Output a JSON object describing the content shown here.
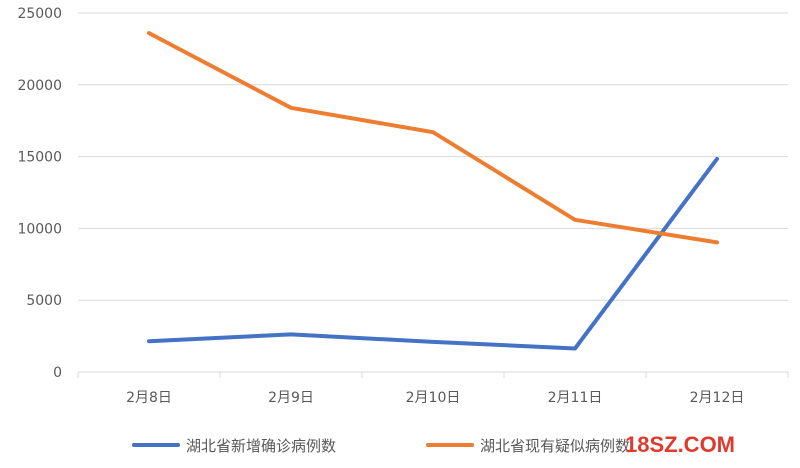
{
  "chart_data": {
    "type": "line",
    "categories": [
      "2月8日",
      "2月9日",
      "2月10日",
      "2月11日",
      "2月12日"
    ],
    "ylim": [
      0,
      25000
    ],
    "yticks": [
      "0",
      "5000",
      "10000",
      "15000",
      "20000",
      "25000"
    ],
    "grid": true,
    "legend_position": "bottom",
    "series": [
      {
        "name": "湖北省新增确诊病例数",
        "color": "#4472C4",
        "values": [
          2147,
          2618,
          2097,
          1638,
          14840
        ]
      },
      {
        "name": "湖北省现有疑似病例数",
        "color": "#ED7D31",
        "values": [
          23600,
          18400,
          16700,
          10600,
          9028
        ]
      }
    ]
  },
  "watermark": {
    "text": "18SZ.COM",
    "color": "#e03a2e"
  }
}
